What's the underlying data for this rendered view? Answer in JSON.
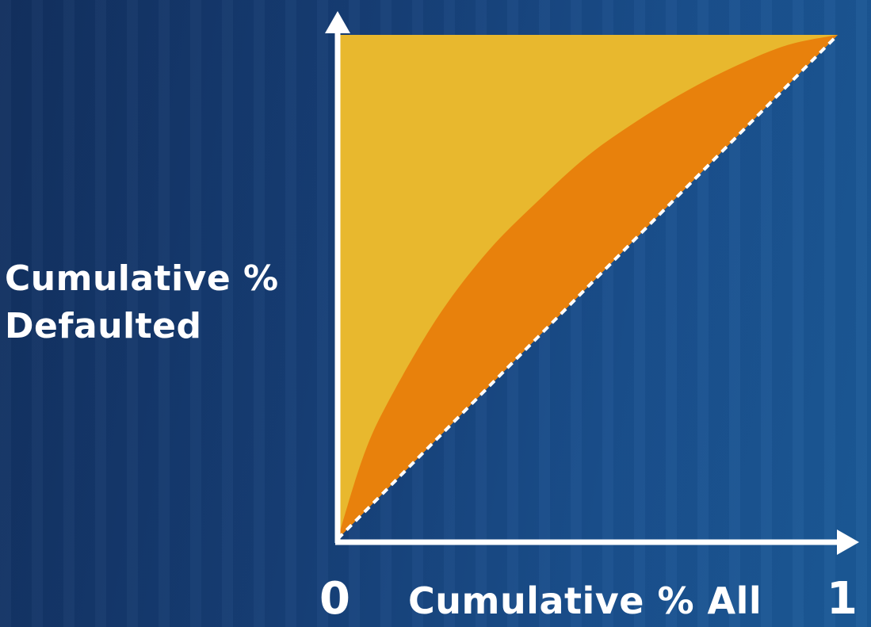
{
  "chart_data": {
    "type": "area",
    "title": "",
    "xlabel": "Cumulative % All",
    "ylabel_lines": [
      "Cumulative %",
      "Defaulted"
    ],
    "x_ticks": [
      "0",
      "1"
    ],
    "xlim": [
      0,
      1
    ],
    "ylim": [
      0,
      1
    ],
    "grid": false,
    "legend": "none",
    "series": [
      {
        "role": "perfect-model",
        "color": "#e8b82e",
        "x": [
          0,
          0,
          1
        ],
        "y": [
          0,
          1,
          1
        ]
      },
      {
        "role": "model-curve",
        "color": "#e8810c",
        "x": [
          0,
          0.05,
          0.1,
          0.2,
          0.3,
          0.4,
          0.5,
          0.6,
          0.7,
          0.8,
          0.9,
          1.0
        ],
        "y": [
          0,
          0.16,
          0.27,
          0.44,
          0.57,
          0.67,
          0.76,
          0.83,
          0.89,
          0.94,
          0.98,
          1.0
        ]
      },
      {
        "role": "random-baseline",
        "color": "#ffffff",
        "style": "dashed",
        "x": [
          0,
          1
        ],
        "y": [
          0,
          1
        ]
      }
    ]
  }
}
